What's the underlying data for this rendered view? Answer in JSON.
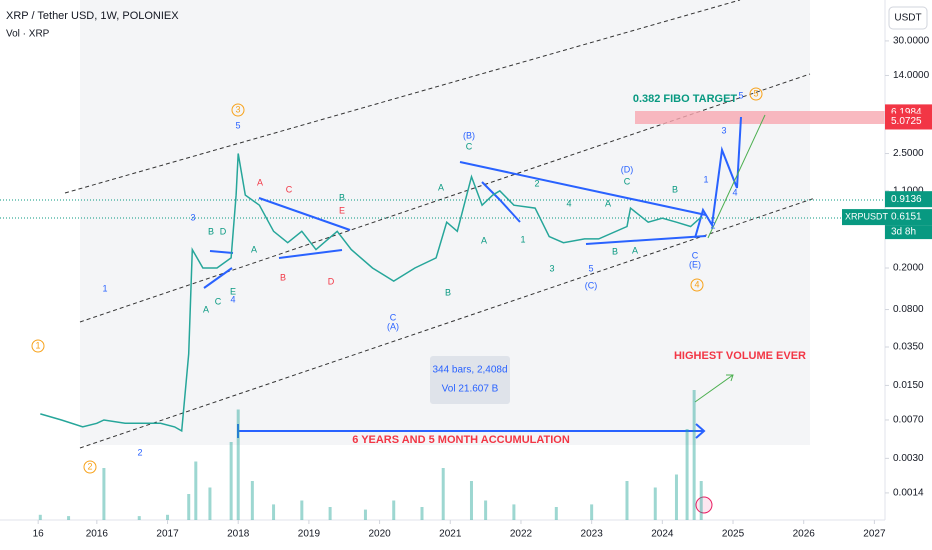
{
  "header": {
    "symbol": "XRP / Tether USD, 1W, POLONIEX",
    "volume_label": "Vol · XRP",
    "currency": "USDT"
  },
  "chart_data": {
    "type": "line",
    "scale": "log",
    "color": "#26a69a",
    "x": [
      2015.2,
      2015.5,
      2015.8,
      2016.0,
      2016.1,
      2016.4,
      2016.7,
      2016.9,
      2017.1,
      2017.2,
      2017.3,
      2017.35,
      2017.5,
      2017.7,
      2017.9,
      2017.97,
      2018.0,
      2018.1,
      2018.3,
      2018.5,
      2018.7,
      2018.9,
      2019.1,
      2019.4,
      2019.6,
      2019.9,
      2020.2,
      2020.5,
      2020.8,
      2020.95,
      2021.1,
      2021.3,
      2021.45,
      2021.6,
      2021.7,
      2021.9,
      2022.2,
      2022.4,
      2022.6,
      2022.9,
      2023.1,
      2023.5,
      2023.55,
      2023.8,
      2024.0,
      2024.2,
      2024.4,
      2024.55
    ],
    "values": [
      0.008,
      0.007,
      0.006,
      0.0065,
      0.007,
      0.0065,
      0.0065,
      0.0065,
      0.006,
      0.0055,
      0.03,
      0.3,
      0.2,
      0.2,
      0.25,
      1.0,
      2.5,
      1.0,
      0.8,
      0.45,
      0.35,
      0.45,
      0.3,
      0.45,
      0.3,
      0.2,
      0.15,
      0.2,
      0.25,
      0.55,
      0.45,
      1.5,
      0.8,
      1.0,
      1.1,
      0.8,
      0.75,
      0.4,
      0.35,
      0.38,
      0.38,
      0.5,
      0.75,
      0.55,
      0.6,
      0.55,
      0.5,
      0.6151
    ],
    "xlim": [
      2014.63,
      2027.15
    ],
    "ylim": [
      0.00077,
      74
    ],
    "xticks": [
      {
        "value": 2015.17,
        "label": "16"
      },
      2016,
      2017,
      2018,
      2019,
      2020,
      2021,
      2022,
      2023,
      2024,
      2025,
      2026,
      2027
    ],
    "yticks": [
      {
        "value": 30,
        "label": "30.0000"
      },
      {
        "value": 14,
        "label": "14.0000"
      },
      {
        "value": 2.5,
        "label": "2.5000"
      },
      {
        "value": 1.1,
        "label": "1.1000"
      },
      {
        "value": 0.2,
        "label": "0.2000"
      },
      {
        "value": 0.08,
        "label": "0.0800"
      },
      {
        "value": 0.035,
        "label": "0.0350"
      },
      {
        "value": 0.015,
        "label": "0.0150"
      },
      {
        "value": 0.007,
        "label": "0.0070"
      },
      {
        "value": 0.003,
        "label": "0.0030"
      },
      {
        "value": 0.0014,
        "label": "0.0014"
      }
    ],
    "volume": {
      "color": "#26a69a",
      "ylim": [
        0,
        100
      ],
      "x": [
        2015.2,
        2015.6,
        2016.1,
        2016.6,
        2017.0,
        2017.3,
        2017.4,
        2017.6,
        2017.9,
        2018.0,
        2018.2,
        2018.5,
        2018.9,
        2019.3,
        2019.8,
        2020.2,
        2020.6,
        2020.9,
        2021.3,
        2021.5,
        2021.9,
        2022.5,
        2023.0,
        2023.5,
        2023.9,
        2024.2,
        2024.35,
        2024.45,
        2024.55
      ],
      "values": [
        4,
        3,
        40,
        3,
        4,
        20,
        45,
        25,
        60,
        85,
        30,
        12,
        15,
        10,
        8,
        15,
        10,
        40,
        30,
        15,
        12,
        10,
        12,
        30,
        25,
        35,
        70,
        100,
        30
      ]
    },
    "levels": [
      {
        "value": 6.1984,
        "color": "#f23645"
      },
      {
        "value": 5.0725,
        "color": "#f23645"
      },
      {
        "value": 0.9136,
        "color": "#089981"
      },
      {
        "value": 0.6151,
        "color": "#089981",
        "name": "XRPUSDT",
        "countdown": "3d 8h"
      }
    ]
  },
  "info_box": {
    "bars": "344 bars, 2,408d",
    "volume": "Vol 21.607 B"
  },
  "annotations": [
    "1",
    "2",
    "2",
    "1",
    "3",
    "5",
    "3",
    "B",
    "D",
    "A",
    "C",
    "E",
    "4",
    "A",
    "C",
    "A",
    "B",
    "B",
    "E",
    "D",
    "C",
    "(A)",
    "A",
    "B",
    "(B)",
    "C",
    "A",
    "2",
    "1",
    "4",
    "3",
    "5",
    "(C)",
    "A",
    "(D)",
    "C",
    "B",
    "B",
    "A",
    "1",
    "2",
    "3",
    "4",
    "5",
    "C",
    "(E)",
    "4",
    "5",
    "0.382 FIBO TARGET",
    "HIGHEST VOLUME EVER",
    "6 YEARS AND 5 MONTH ACCUMULATION"
  ]
}
